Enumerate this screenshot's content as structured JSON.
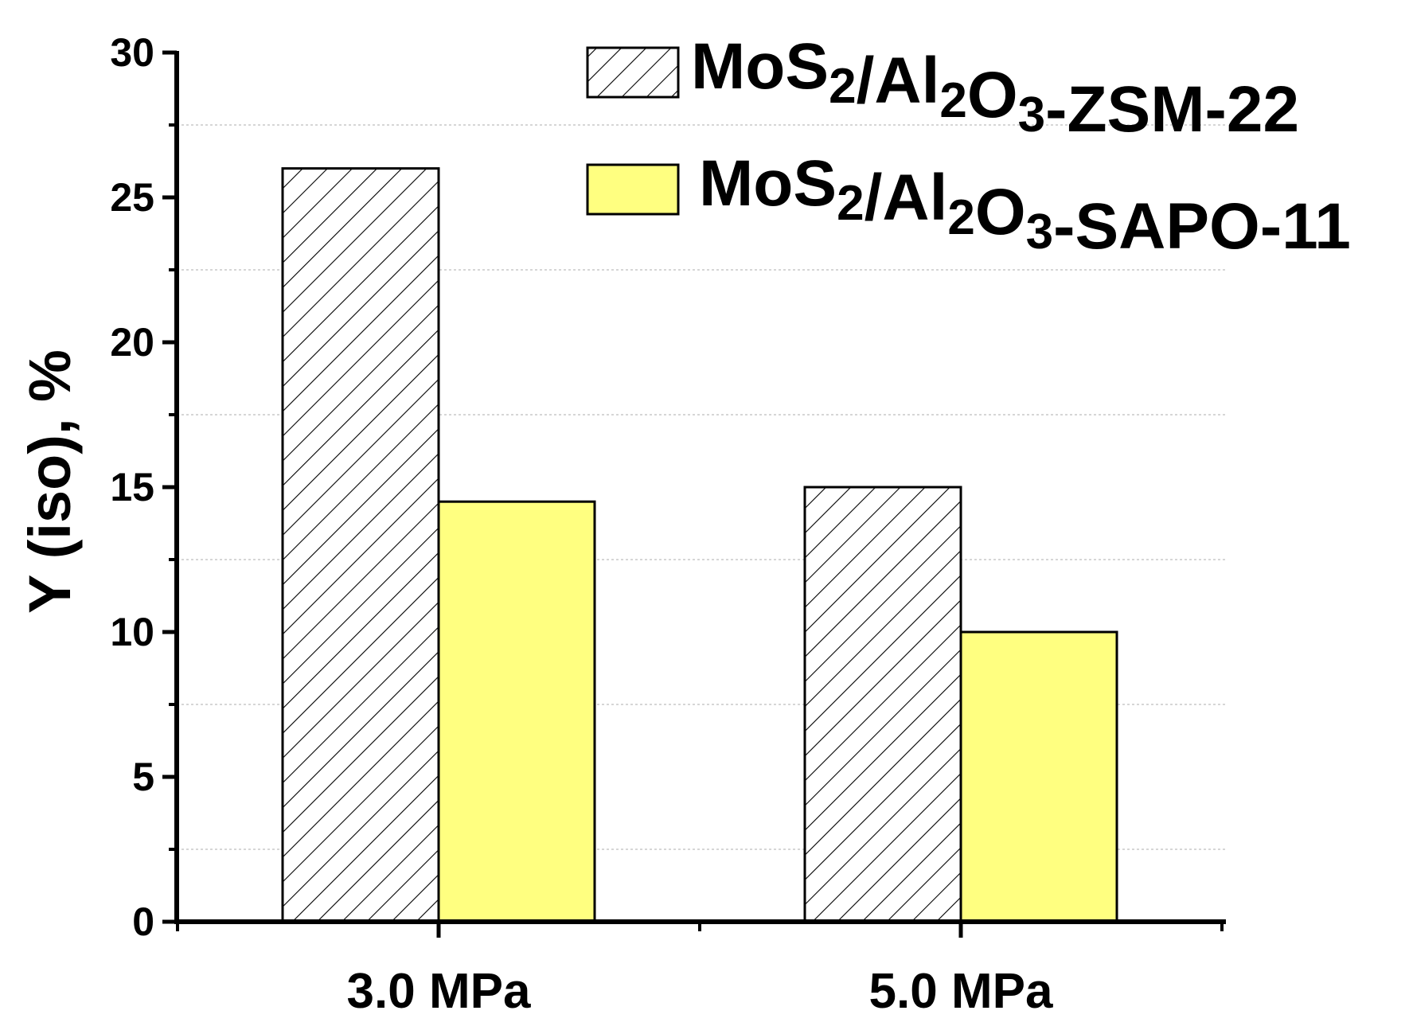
{
  "chart_data": {
    "type": "bar",
    "categories": [
      "3.0 MPa",
      "5.0 MPa"
    ],
    "series": [
      {
        "name": "MoS2/Al2O3-ZSM-22",
        "legend_parts": [
          {
            "text": "MoS",
            "sub": false
          },
          {
            "text": "2",
            "sub": true
          },
          {
            "text": "/Al",
            "sub": false
          },
          {
            "text": "2",
            "sub": true
          },
          {
            "text": "O",
            "sub": false
          },
          {
            "text": "3",
            "sub": true
          },
          {
            "text": "-ZSM-22",
            "sub": false
          }
        ],
        "values": [
          26,
          15
        ],
        "fill": "hatched",
        "color": "#ffffff"
      },
      {
        "name": "MoS2/Al2O3-SAPO-11",
        "legend_parts": [
          {
            "text": "MoS",
            "sub": false
          },
          {
            "text": "2",
            "sub": true
          },
          {
            "text": "/Al",
            "sub": false
          },
          {
            "text": "2",
            "sub": true
          },
          {
            "text": "O",
            "sub": false
          },
          {
            "text": "3",
            "sub": true
          },
          {
            "text": "-SAPO-11",
            "sub": false
          }
        ],
        "values": [
          14.5,
          10
        ],
        "fill": "solid",
        "color": "#ffff80"
      }
    ],
    "title": "",
    "xlabel": "",
    "ylabel": "Y (iso), %",
    "ylim": [
      0,
      30
    ],
    "yticks": [
      0,
      5,
      10,
      15,
      20,
      25,
      30
    ],
    "grid": true,
    "legend_position": "top-right"
  }
}
